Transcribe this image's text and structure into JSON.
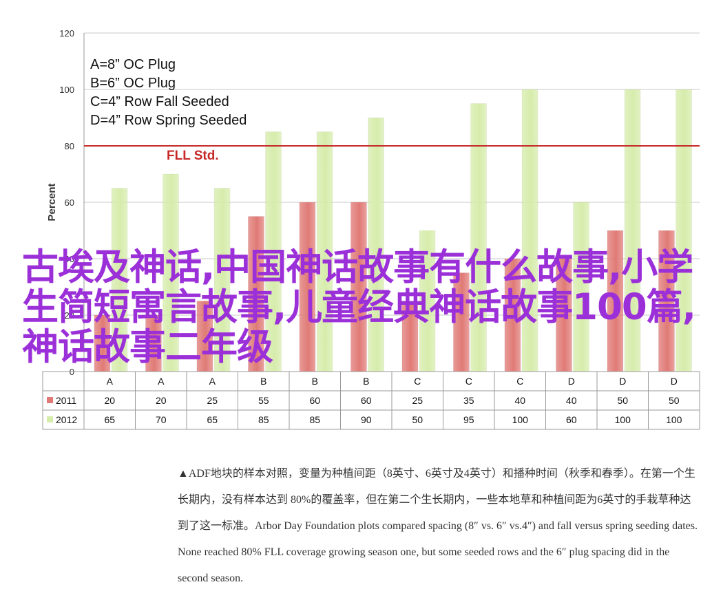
{
  "chart_data": {
    "type": "bar",
    "categories": [
      "A",
      "A",
      "A",
      "B",
      "B",
      "B",
      "C",
      "C",
      "C",
      "D",
      "D",
      "D"
    ],
    "series": [
      {
        "name": "2011",
        "color": "#e07a76",
        "values": [
          20,
          20,
          25,
          55,
          60,
          60,
          25,
          35,
          40,
          40,
          50,
          50
        ]
      },
      {
        "name": "2012",
        "color": "#d6ecab",
        "values": [
          65,
          70,
          65,
          85,
          85,
          90,
          50,
          95,
          100,
          60,
          100,
          100
        ]
      }
    ],
    "ylabel": "Percent",
    "ylim": [
      0,
      120
    ],
    "yticks": [
      0,
      20,
      40,
      60,
      80,
      100,
      120
    ],
    "reference_line": {
      "value": 80,
      "label": "FLL Std.",
      "color": "#c62828"
    },
    "legend_text": [
      "A=8” OC Plug",
      "B=6” OC Plug",
      "C=4” Row Fall Seeded",
      "D=4” Row Spring Seeded"
    ],
    "data_table": true
  },
  "overlay_text": "古埃及神话,中国神话故事有什么故事,小学生简短寓言故事,儿童经典神话故事100篇,神话故事二年级",
  "caption": {
    "text": "▲ADF地块的样本对照，变量为种植间距（8英寸、6英寸及4英寸）和播种时间（秋季和春季）。在第一个生长期内，没有样本达到 80%的覆盖率，但在第二个生长期内，一些本地草和种植间距为6英寸的手栽草种达到了这一标准。Arbor Day Foundation plots compared spacing (8″ vs. 6″ vs.4″) and fall versus spring seeding dates. None reached 80% FLL coverage growing season one, but some seeded rows and the 6″ plug spacing did in the second season."
  }
}
